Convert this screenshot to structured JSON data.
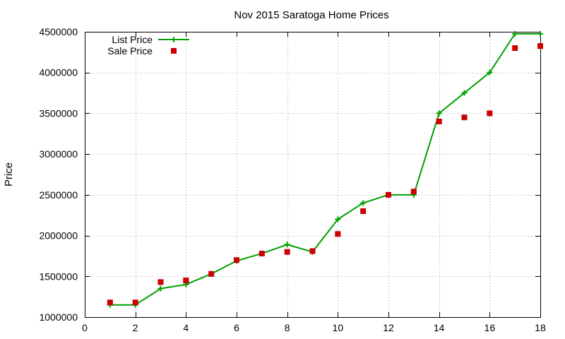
{
  "chart_data": {
    "type": "line",
    "title": "Nov 2015 Saratoga Home Prices",
    "xlabel": "",
    "ylabel": "Price",
    "xlim": [
      0,
      18
    ],
    "ylim": [
      1000000,
      4500000
    ],
    "x_ticks": [
      0,
      2,
      4,
      6,
      8,
      10,
      12,
      14,
      16,
      18
    ],
    "y_ticks": [
      1000000,
      1500000,
      2000000,
      2500000,
      3000000,
      3500000,
      4000000,
      4500000
    ],
    "grid": true,
    "legend_position": "top-left",
    "series": [
      {
        "name": "List Price",
        "style": "line with plus markers",
        "color": "#00a000",
        "x": [
          1,
          2,
          3,
          4,
          5,
          6,
          7,
          8,
          9,
          10,
          11,
          12,
          13,
          14,
          15,
          16,
          17,
          18
        ],
        "values": [
          1150000,
          1150000,
          1350000,
          1400000,
          1530000,
          1690000,
          1780000,
          1890000,
          1800000,
          2200000,
          2400000,
          2500000,
          2500000,
          3500000,
          3750000,
          4000000,
          4475000,
          4475000
        ]
      },
      {
        "name": "Sale Price",
        "style": "square markers",
        "color": "#cc0000",
        "x": [
          1,
          2,
          3,
          4,
          5,
          6,
          7,
          8,
          9,
          10,
          11,
          12,
          13,
          14,
          15,
          16,
          17,
          18
        ],
        "values": [
          1180000,
          1180000,
          1430000,
          1450000,
          1530000,
          1700000,
          1780000,
          1800000,
          1810000,
          2020000,
          2300000,
          2500000,
          2540000,
          3400000,
          3450000,
          3500000,
          4300000,
          4325000
        ]
      }
    ]
  }
}
